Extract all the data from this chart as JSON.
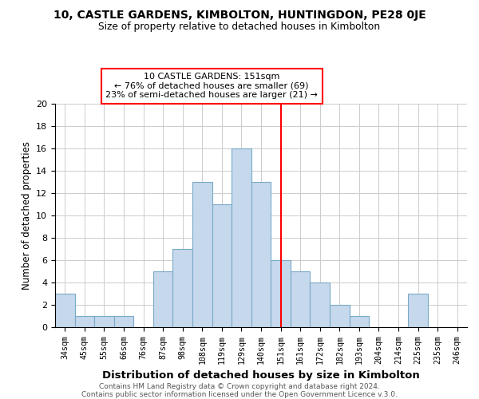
{
  "title": "10, CASTLE GARDENS, KIMBOLTON, HUNTINGDON, PE28 0JE",
  "subtitle": "Size of property relative to detached houses in Kimbolton",
  "xlabel": "Distribution of detached houses by size in Kimbolton",
  "ylabel": "Number of detached properties",
  "footer1": "Contains HM Land Registry data © Crown copyright and database right 2024.",
  "footer2": "Contains public sector information licensed under the Open Government Licence v.3.0.",
  "bins": [
    "34sqm",
    "45sqm",
    "55sqm",
    "66sqm",
    "76sqm",
    "87sqm",
    "98sqm",
    "108sqm",
    "119sqm",
    "129sqm",
    "140sqm",
    "151sqm",
    "161sqm",
    "172sqm",
    "182sqm",
    "193sqm",
    "204sqm",
    "214sqm",
    "225sqm",
    "235sqm",
    "246sqm"
  ],
  "values": [
    3,
    1,
    1,
    1,
    0,
    5,
    7,
    13,
    11,
    16,
    13,
    6,
    5,
    4,
    2,
    1,
    0,
    0,
    3,
    0,
    0
  ],
  "bar_color": "#c5d8ec",
  "bar_edge_color": "#7aaac8",
  "vline_x_index": 11,
  "vline_color": "red",
  "annotation_title": "10 CASTLE GARDENS: 151sqm",
  "annotation_line1": "← 76% of detached houses are smaller (69)",
  "annotation_line2": "23% of semi-detached houses are larger (21) →",
  "annotation_box_color": "white",
  "annotation_box_edge": "red",
  "ylim": [
    0,
    20
  ],
  "yticks": [
    0,
    2,
    4,
    6,
    8,
    10,
    12,
    14,
    16,
    18,
    20
  ]
}
